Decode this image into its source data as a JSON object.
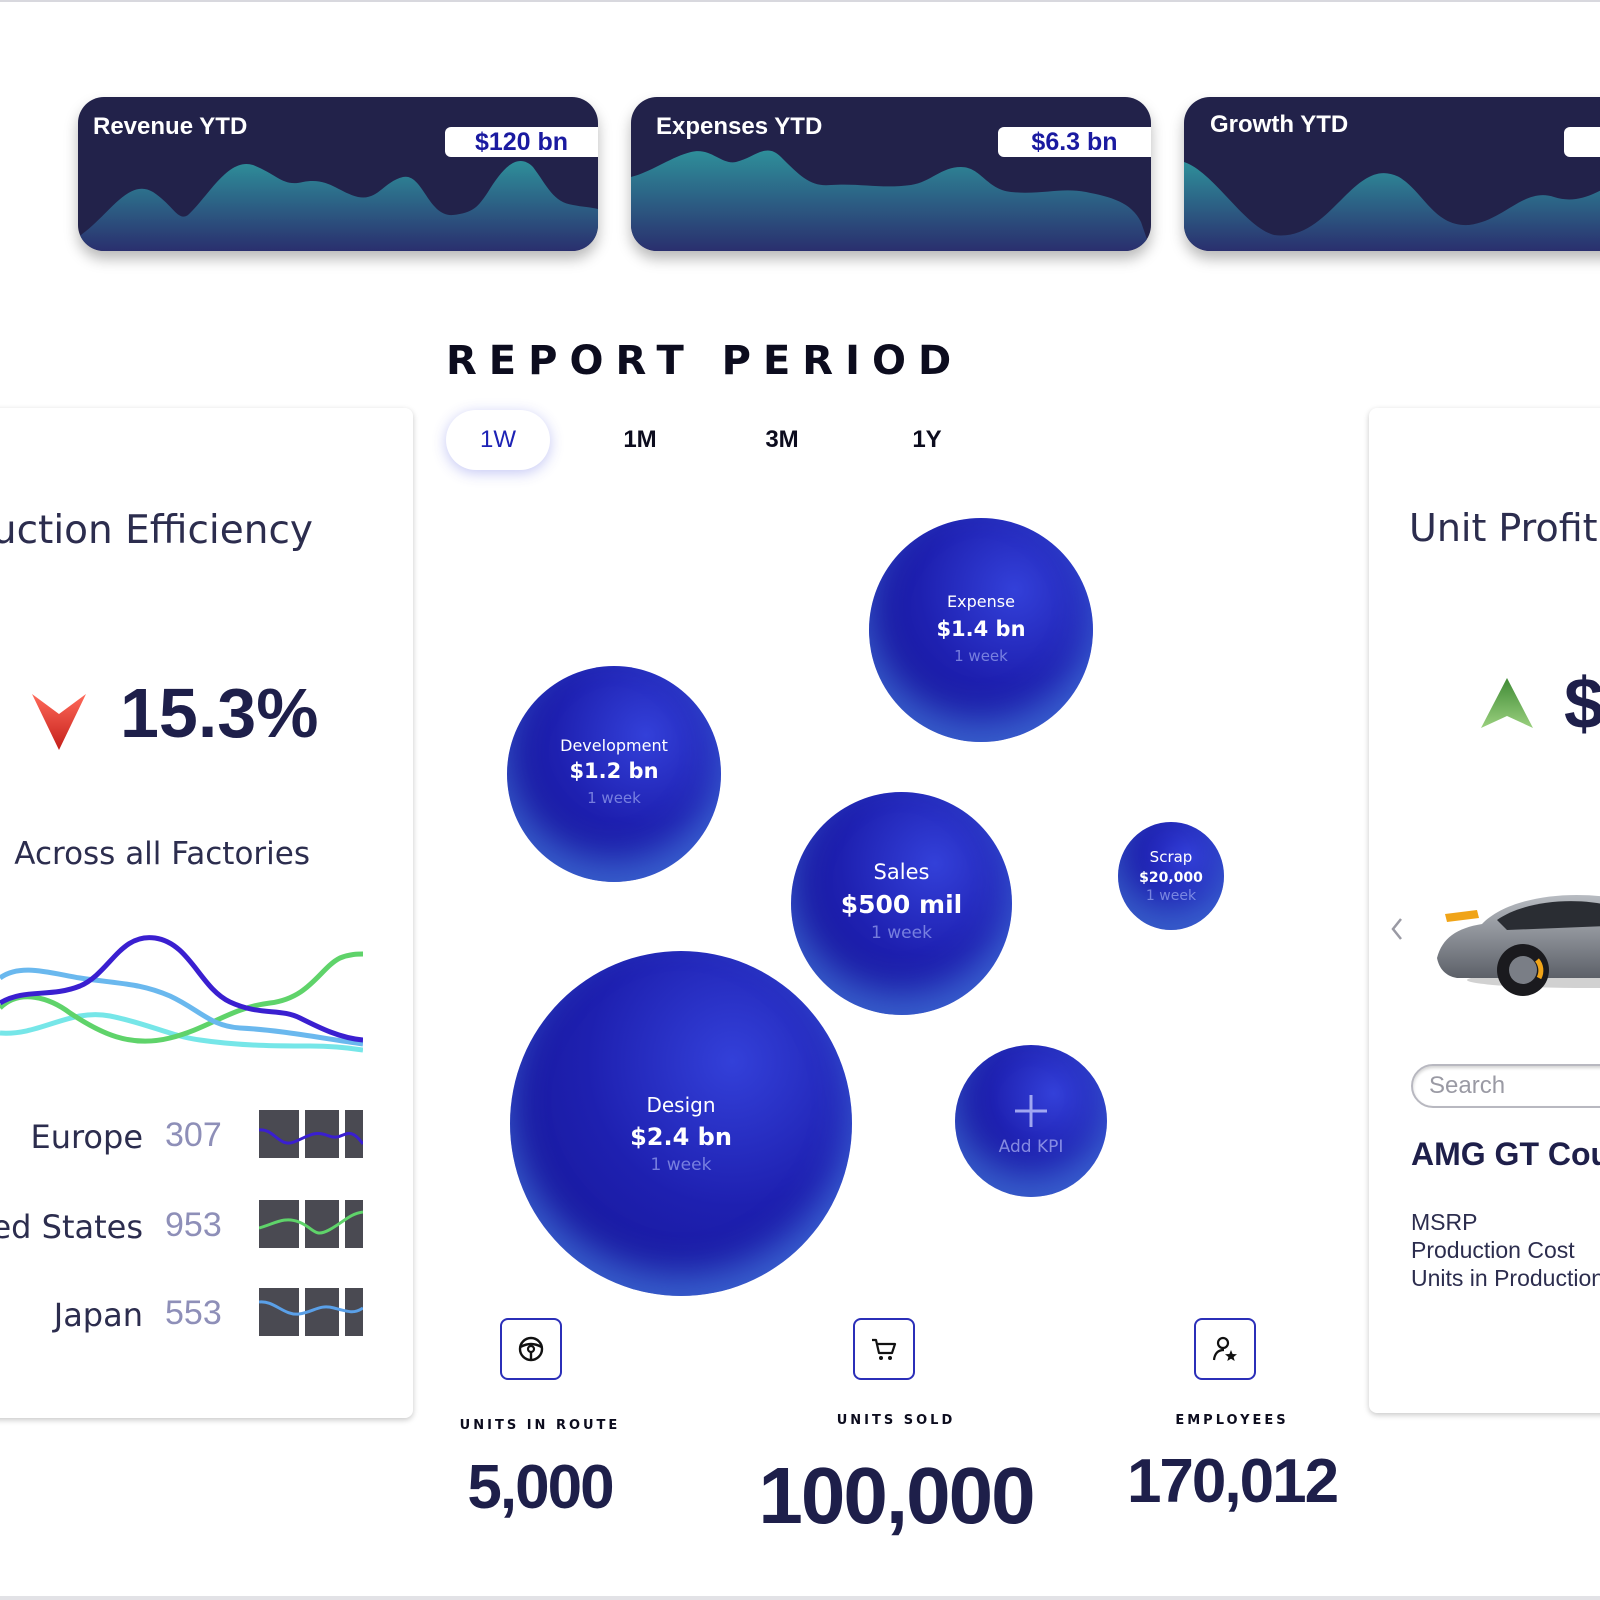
{
  "kpi_cards": [
    {
      "title": "Revenue YTD",
      "value": "$120 bn"
    },
    {
      "title": "Expenses YTD",
      "value": "$6.3 bn"
    },
    {
      "title": "Growth YTD",
      "value": ""
    }
  ],
  "report": {
    "title": "REPORT PERIOD",
    "tabs": [
      "1W",
      "1M",
      "3M",
      "1Y"
    ],
    "active_tab": "1W"
  },
  "bubbles": [
    {
      "name": "Expense",
      "value": "$1.4 bn",
      "period": "1 week"
    },
    {
      "name": "Development",
      "value": "$1.2 bn",
      "period": "1 week"
    },
    {
      "name": "Sales",
      "value": "$500 mil",
      "period": "1 week"
    },
    {
      "name": "Scrap",
      "value": "$20,000",
      "period": "1 week"
    },
    {
      "name": "Design",
      "value": "$2.4 bn",
      "period": "1 week"
    }
  ],
  "add_kpi": {
    "label": "Add KPI"
  },
  "stats": [
    {
      "label": "UNITS IN ROUTE",
      "value": "5,000",
      "icon": "steering-wheel-icon"
    },
    {
      "label": "UNITS SOLD",
      "value": "100,000",
      "icon": "cart-icon"
    },
    {
      "label": "EMPLOYEES",
      "value": "170,012",
      "icon": "user-star-icon"
    }
  ],
  "efficiency": {
    "title": "Production Efficiency",
    "value": "15.3%",
    "subtitle": "Across all Factories",
    "regions": [
      {
        "name": "Europe",
        "value": "307",
        "color": "#3a1fd0"
      },
      {
        "name": "United States",
        "value": "953",
        "color": "#5fd36a"
      },
      {
        "name": "Japan",
        "value": "553",
        "color": "#5aa0e8"
      }
    ]
  },
  "unit_profit": {
    "title": "Unit Profit",
    "value": "$",
    "search_placeholder": "Search",
    "car_name": "AMG GT Coupe",
    "specs": [
      "MSRP",
      "Production Cost",
      "Units in Production"
    ]
  },
  "colors": {
    "navy": "#22224a",
    "accent": "#1d22b5",
    "down": "#e23a2e",
    "up": "#5aa04a"
  }
}
